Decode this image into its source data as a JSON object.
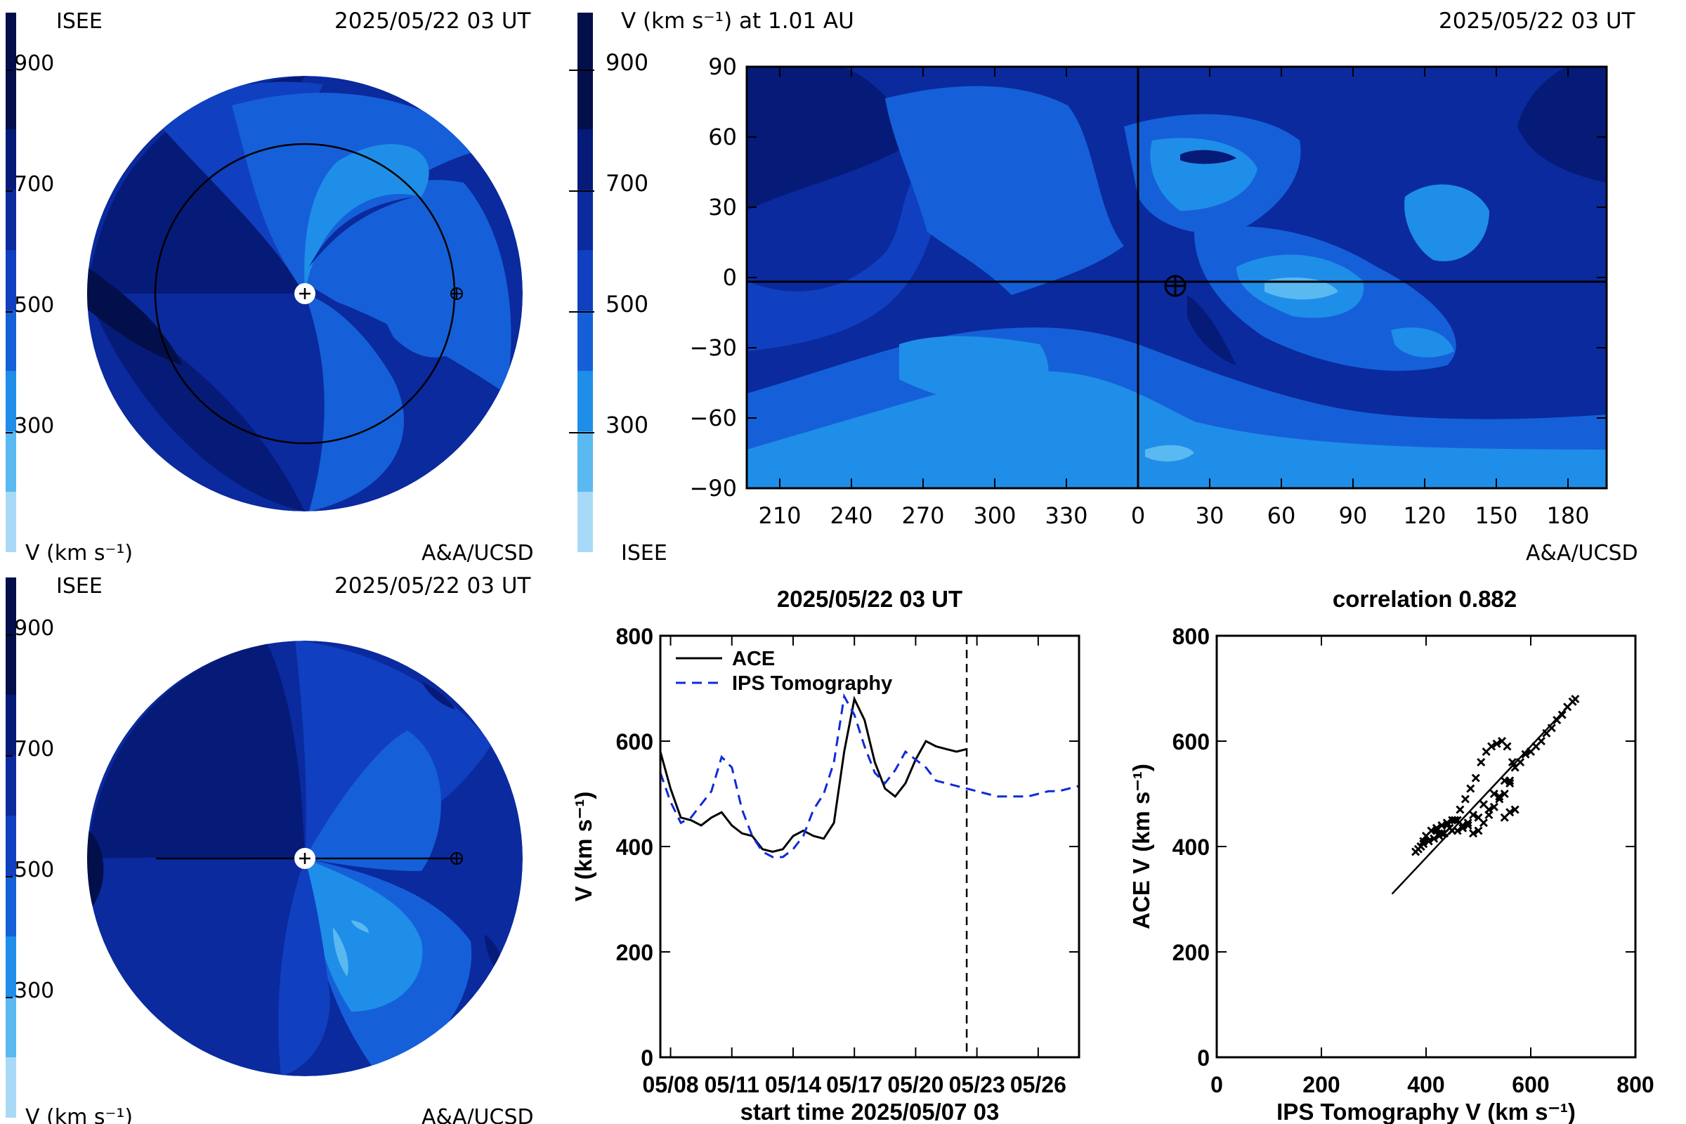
{
  "colors": {
    "scale": [
      "#a8daf7",
      "#5ab9f0",
      "#1f8ee8",
      "#1560d8",
      "#1040c0",
      "#0a2a9e",
      "#061a78",
      "#030f4a"
    ],
    "bg": "#ffffff",
    "ace_line": "#000000",
    "ips_line": "#0f2bd6"
  },
  "panel_tl": {
    "org": "ISEE",
    "timestamp": "2025/05/22 03 UT",
    "cbar_labels": [
      "900",
      "700",
      "500",
      "300"
    ],
    "unit": "V (km s⁻¹)",
    "credit": "A&A/UCSD"
  },
  "panel_tr": {
    "title": "V (km s⁻¹) at 1.01 AU",
    "timestamp": "2025/05/22 03 UT",
    "cbar_labels": [
      "900",
      "700",
      "500",
      "300"
    ],
    "org": "ISEE",
    "credit": "A&A/UCSD"
  },
  "panel_bl": {
    "org": "ISEE",
    "timestamp": "2025/05/22 03 UT",
    "cbar_labels": [
      "900",
      "700",
      "500",
      "300"
    ],
    "unit": "V (km s⁻¹)",
    "credit": "A&A/UCSD"
  },
  "chart_data": [
    {
      "type": "heatmap",
      "title": "V (km s⁻¹) at 1.01 AU",
      "x_ticks": [
        "210",
        "240",
        "270",
        "300",
        "330",
        "0",
        "30",
        "60",
        "90",
        "120",
        "150",
        "180"
      ],
      "y_ticks": [
        "90",
        "60",
        "30",
        "0",
        "−30",
        "−60",
        "−90"
      ],
      "ylim": [
        -90,
        90
      ],
      "colorbar_range": [
        200,
        1000
      ],
      "earth_marker": {
        "longitude": 16,
        "latitude": -2
      }
    },
    {
      "type": "line",
      "title": "2025/05/22 03 UT",
      "ylabel": "V (km s⁻¹)",
      "xlabel": "start time 2025/05/07 03",
      "x_ticks": [
        "05/08",
        "05/11",
        "05/14",
        "05/17",
        "05/20",
        "05/23",
        "05/26"
      ],
      "y_ticks": [
        "800",
        "600",
        "400",
        "200",
        "0"
      ],
      "ylim": [
        0,
        800
      ],
      "xlim": [
        0,
        20.5
      ],
      "current_day": 15.0,
      "legend_position": "top-left",
      "series": [
        {
          "name": "ACE",
          "x": [
            0,
            0.5,
            1,
            1.5,
            2,
            2.5,
            3,
            3.5,
            4,
            4.5,
            5,
            5.5,
            6,
            6.5,
            7,
            7.5,
            8,
            8.5,
            9,
            9.5,
            10,
            10.5,
            11,
            11.5,
            12,
            12.5,
            13,
            13.5,
            14,
            14.5,
            15
          ],
          "y": [
            580,
            510,
            455,
            450,
            440,
            455,
            465,
            440,
            425,
            420,
            395,
            390,
            395,
            420,
            430,
            420,
            415,
            445,
            580,
            680,
            640,
            560,
            510,
            495,
            520,
            565,
            600,
            590,
            585,
            580,
            585
          ]
        },
        {
          "name": "IPS Tomography",
          "x": [
            0,
            0.5,
            1,
            1.5,
            2,
            2.5,
            3,
            3.5,
            4,
            4.5,
            5,
            5.5,
            6,
            6.5,
            7,
            7.5,
            8,
            8.5,
            9,
            9.5,
            10,
            10.5,
            11,
            11.5,
            12,
            12.5,
            13,
            13.5,
            14,
            14.5,
            15,
            15.5,
            16,
            16.5,
            17,
            17.5,
            18,
            18.5,
            19,
            19.5,
            20,
            20.5
          ],
          "y": [
            540,
            485,
            445,
            455,
            480,
            505,
            570,
            550,
            470,
            420,
            390,
            380,
            380,
            395,
            420,
            470,
            500,
            560,
            685,
            650,
            590,
            540,
            520,
            545,
            580,
            565,
            550,
            525,
            520,
            515,
            510,
            505,
            500,
            495,
            495,
            495,
            495,
            500,
            505,
            505,
            510,
            515
          ]
        }
      ]
    },
    {
      "type": "scatter",
      "title": "correlation 0.882",
      "xlabel": "IPS Tomography V (km s⁻¹)",
      "ylabel": "ACE V (km s⁻¹)",
      "x_ticks": [
        "0",
        "200",
        "400",
        "600",
        "800"
      ],
      "y_ticks": [
        "800",
        "600",
        "400",
        "200",
        "0"
      ],
      "xlim": [
        0,
        800
      ],
      "ylim": [
        0,
        800
      ],
      "fit_line": {
        "x": [
          335,
          685
        ],
        "y": [
          310,
          680
        ]
      },
      "points": {
        "x": [
          380,
          385,
          390,
          395,
          400,
          410,
          420,
          430,
          440,
          450,
          460,
          470,
          480,
          490,
          500,
          510,
          520,
          530,
          540,
          550,
          560,
          565,
          555,
          545,
          535,
          525,
          515,
          505,
          495,
          485,
          475,
          465,
          455,
          445,
          435,
          425,
          415,
          405,
          395,
          390,
          420,
          440,
          460,
          480,
          500,
          520,
          540,
          560,
          580,
          600,
          620,
          640,
          660,
          680,
          685,
          670,
          650,
          630,
          610,
          590,
          570,
          550,
          530,
          510,
          490,
          470,
          450,
          430,
          550,
          560,
          570
        ],
        "y": [
          390,
          395,
          400,
          410,
          420,
          430,
          435,
          440,
          445,
          450,
          430,
          435,
          440,
          425,
          430,
          445,
          460,
          475,
          490,
          500,
          520,
          560,
          590,
          600,
          595,
          590,
          580,
          560,
          530,
          510,
          490,
          470,
          450,
          435,
          425,
          420,
          415,
          410,
          405,
          400,
          430,
          440,
          450,
          445,
          455,
          470,
          495,
          525,
          560,
          580,
          600,
          625,
          650,
          675,
          680,
          665,
          640,
          615,
          590,
          575,
          550,
          525,
          500,
          480,
          460,
          440,
          430,
          425,
          455,
          465,
          470
        ]
      }
    }
  ]
}
